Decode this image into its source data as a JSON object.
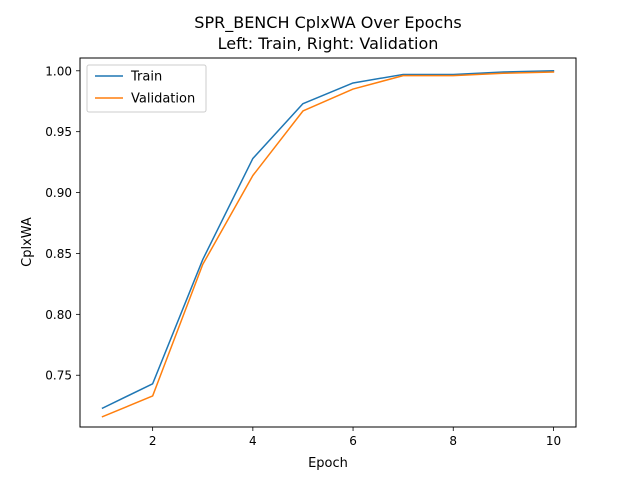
{
  "chart_data": {
    "type": "line",
    "title": "SPR_BENCH CplxWA Over Epochs",
    "subtitle": "Left: Train, Right: Validation",
    "xlabel": "Epoch",
    "ylabel": "CplxWA",
    "x": [
      1,
      2,
      3,
      4,
      5,
      6,
      7,
      8,
      9,
      10
    ],
    "xticks": [
      2,
      4,
      6,
      8,
      10
    ],
    "yticks": [
      0.75,
      0.8,
      0.85,
      0.9,
      0.95,
      1.0
    ],
    "ytick_labels": [
      "0.75",
      "0.80",
      "0.85",
      "0.90",
      "0.95",
      "1.00"
    ],
    "xlim": [
      0.55,
      10.45
    ],
    "ylim": [
      0.7075,
      1.0105
    ],
    "grid": false,
    "legend_position": "upper-left",
    "series": [
      {
        "name": "Train",
        "color": "#1f77b4",
        "values": [
          0.723,
          0.743,
          0.845,
          0.928,
          0.973,
          0.99,
          0.997,
          0.997,
          0.999,
          1.0
        ]
      },
      {
        "name": "Validation",
        "color": "#ff7f0e",
        "values": [
          0.716,
          0.733,
          0.841,
          0.914,
          0.967,
          0.985,
          0.996,
          0.996,
          0.998,
          0.999
        ]
      }
    ]
  }
}
